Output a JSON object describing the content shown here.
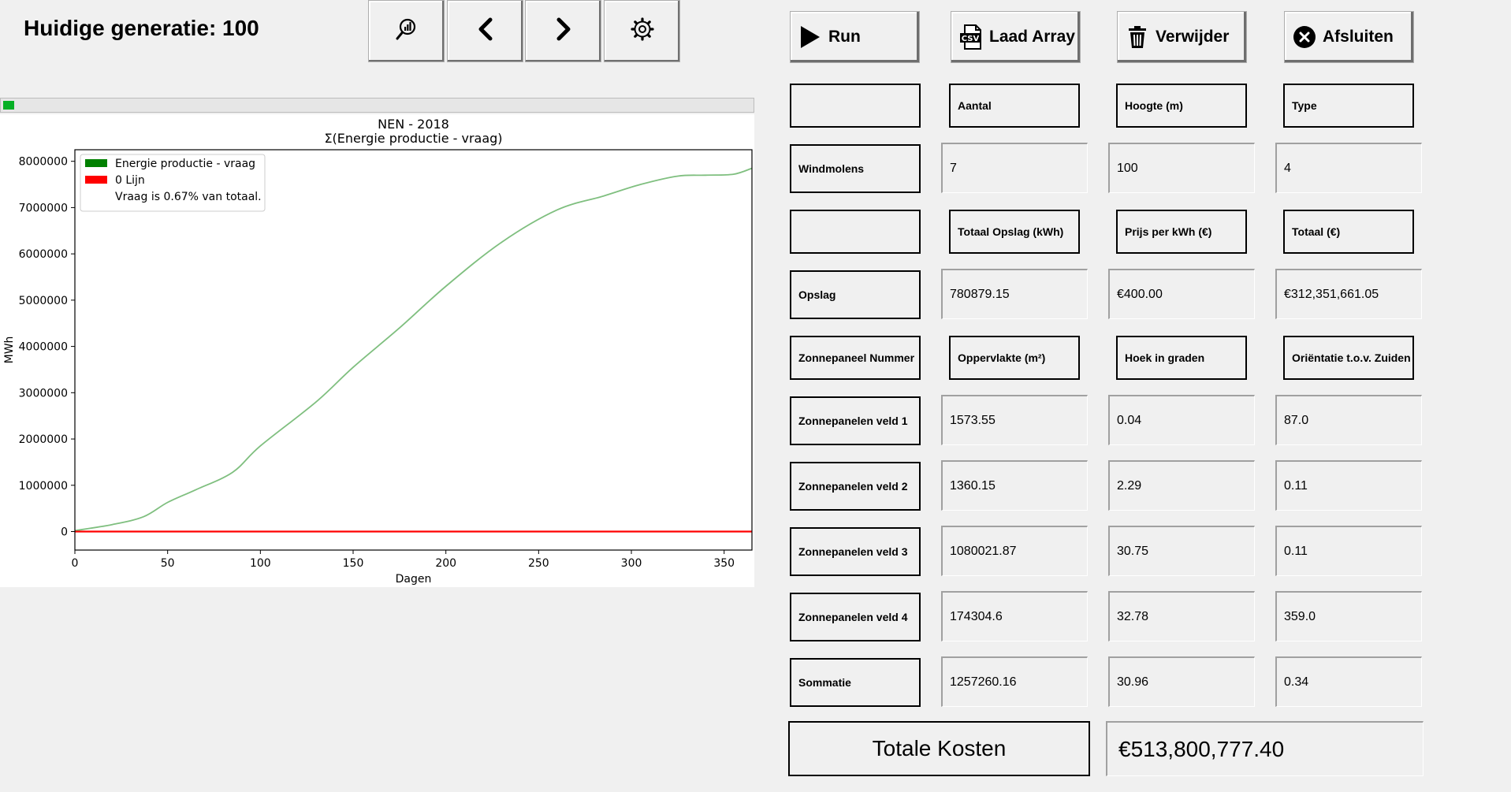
{
  "header": {
    "generation_label": "Huidige generatie: 100"
  },
  "toolbar": {
    "items": [
      {
        "icon": "search-chart-icon"
      },
      {
        "icon": "chevron-left-icon"
      },
      {
        "icon": "chevron-right-icon"
      },
      {
        "icon": "gear-icon"
      }
    ]
  },
  "progress": {
    "value": 0.015,
    "color": "#06b025"
  },
  "actions": [
    {
      "label": "Run",
      "icon": "play-icon"
    },
    {
      "label": "Laad Array",
      "icon": "csv-file-icon"
    },
    {
      "label": "Verwijder",
      "icon": "trash-icon"
    },
    {
      "label": "Afsluiten",
      "icon": "close-circle-icon"
    }
  ],
  "grid": {
    "rows": [
      {
        "type": "header",
        "label": "",
        "cells": [
          "Aantal",
          "Hoogte (m)",
          "Type"
        ]
      },
      {
        "type": "data",
        "label": "Windmolens",
        "cells": [
          "7",
          "100",
          "4"
        ]
      },
      {
        "type": "header",
        "label": "",
        "cells": [
          "Totaal Opslag (kWh)",
          "Prijs per kWh (€)",
          "Totaal (€)"
        ]
      },
      {
        "type": "data",
        "label": "Opslag",
        "cells": [
          "780879.15",
          "€400.00",
          "€312,351,661.05"
        ]
      },
      {
        "type": "header",
        "label": "Zonnepaneel Nummer",
        "cells": [
          "Oppervlakte (m²)",
          "Hoek in graden",
          "Oriëntatie t.o.v. Zuiden"
        ]
      },
      {
        "type": "data",
        "label": "Zonnepanelen veld 1",
        "cells": [
          "1573.55",
          "0.04",
          "87.0"
        ]
      },
      {
        "type": "data",
        "label": "Zonnepanelen veld 2",
        "cells": [
          "1360.15",
          "2.29",
          "0.11"
        ]
      },
      {
        "type": "data",
        "label": "Zonnepanelen veld 3",
        "cells": [
          "1080021.87",
          "30.75",
          "0.11"
        ]
      },
      {
        "type": "data",
        "label": "Zonnepanelen veld 4",
        "cells": [
          "174304.6",
          "32.78",
          "359.0"
        ]
      },
      {
        "type": "data",
        "label": "Sommatie",
        "cells": [
          "1257260.16",
          "30.96",
          "0.34"
        ]
      }
    ]
  },
  "totals": {
    "label": "Totale Kosten",
    "value": "€513,800,777.40"
  },
  "chart_data": {
    "type": "line",
    "title": "NEN - 2018",
    "subtitle": "Σ(Energie productie - vraag)",
    "xlabel": "Dagen",
    "ylabel": "MWh",
    "xlim": [
      0,
      365
    ],
    "ylim": [
      -400000,
      8250000
    ],
    "xticks": [
      0,
      50,
      100,
      150,
      200,
      250,
      300,
      350
    ],
    "yticks": [
      0,
      1000000,
      2000000,
      3000000,
      4000000,
      5000000,
      6000000,
      7000000,
      8000000
    ],
    "legend_position": "top-left",
    "legend": [
      {
        "label": "Energie productie - vraag",
        "color": "#008000"
      },
      {
        "label": "0 Lijn",
        "color": "#ff0000"
      },
      {
        "label": "Vraag is 0.67% van totaal.",
        "color": ""
      }
    ],
    "series": [
      {
        "name": "Energie productie - vraag",
        "color": "#7fbf7f",
        "x": [
          0,
          20,
          37,
          50,
          65,
          85,
          100,
          130,
          150,
          175,
          200,
          230,
          260,
          285,
          305,
          325,
          340,
          355,
          365
        ],
        "y": [
          20000,
          150000,
          320000,
          630000,
          900000,
          1280000,
          1850000,
          2800000,
          3550000,
          4400000,
          5300000,
          6250000,
          6950000,
          7250000,
          7500000,
          7680000,
          7700000,
          7720000,
          7850000
        ]
      },
      {
        "name": "0 Lijn",
        "color": "#ff0000",
        "x": [
          0,
          365
        ],
        "y": [
          0,
          0
        ]
      }
    ]
  }
}
